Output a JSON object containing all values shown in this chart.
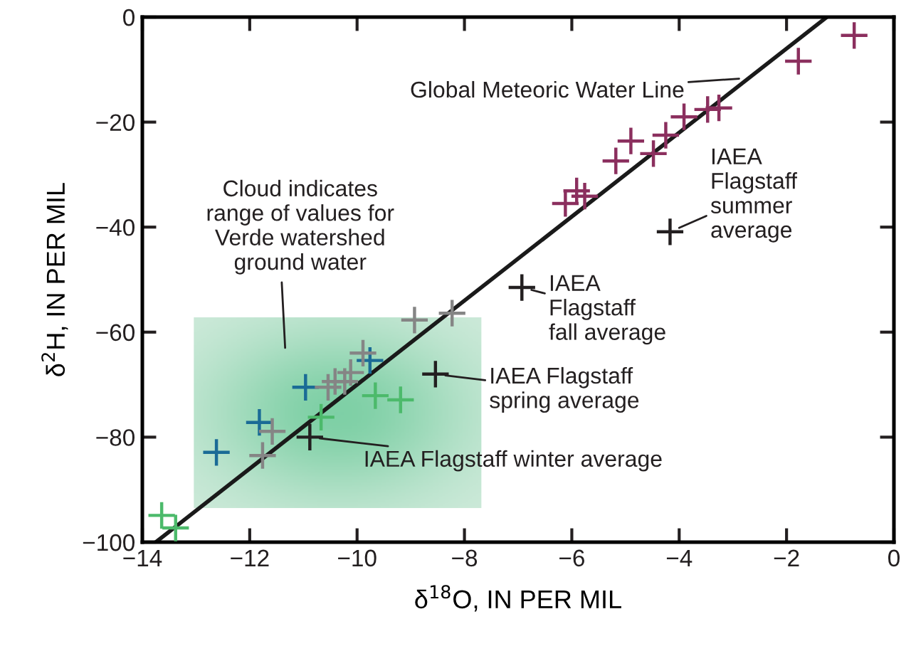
{
  "chart_data": {
    "type": "scatter",
    "xlabel": "δ$^{18}$O, IN PER MIL",
    "ylabel": "δ$^{2}$H, IN PER MIL",
    "xlim": [
      -14,
      0
    ],
    "ylim": [
      -100,
      0
    ],
    "xticks": [
      {
        "value": -14,
        "label": "−14"
      },
      {
        "value": -12,
        "label": "−12"
      },
      {
        "value": -10,
        "label": "−10"
      },
      {
        "value": -8,
        "label": "−8"
      },
      {
        "value": -6,
        "label": "−6"
      },
      {
        "value": -4,
        "label": "−4"
      },
      {
        "value": -2,
        "label": "−2"
      },
      0
    ],
    "yticks": [
      {
        "value": -100,
        "label": "−100"
      },
      {
        "value": -80,
        "label": "−80"
      },
      {
        "value": -60,
        "label": "−60"
      },
      {
        "value": -40,
        "label": "−40"
      },
      {
        "value": -20,
        "label": "−20"
      },
      0
    ],
    "grid": false,
    "legend": false,
    "marker": "cross",
    "series": [
      {
        "type": "line",
        "marker": "none",
        "color": "#1a1a1a",
        "x": [
          -13.75,
          -1.25
        ],
        "values": [
          -100,
          0
        ]
      },
      {
        "color": "#8b2f5e",
        "x": [
          -0.74,
          -1.78,
          -3.26,
          -3.47,
          -3.91,
          -4.25,
          -4.9,
          -4.48,
          -5.18,
          -6.12,
          -5.91,
          -5.76
        ],
        "values": [
          -3.5,
          -8.4,
          -17.3,
          -17.6,
          -19.0,
          -22.5,
          -23.6,
          -26.0,
          -27.4,
          -35.5,
          -33.1,
          -34.1
        ]
      },
      {
        "color": "#1a6b96",
        "x": [
          -12.62,
          -11.82,
          -10.96,
          -9.76
        ],
        "values": [
          -82.9,
          -77.2,
          -70.5,
          -65.4
        ]
      },
      {
        "color": "#858585",
        "x": [
          -11.76,
          -11.58,
          -10.54,
          -10.41,
          -10.23,
          -10.12,
          -9.89,
          -8.93,
          -8.23
        ],
        "values": [
          -83.5,
          -78.9,
          -70.5,
          -69.4,
          -69.4,
          -67.7,
          -64.0,
          -57.7,
          -56.4
        ]
      },
      {
        "color": "#4cba6b",
        "x": [
          -13.64,
          -13.38,
          -10.67,
          -9.66,
          -9.19
        ],
        "values": [
          -94.9,
          -97.3,
          -76.2,
          -72.1,
          -72.9
        ]
      },
      {
        "color": "#231f20",
        "x": [
          -4.17,
          -6.93,
          -8.54,
          -10.88
        ],
        "values": [
          -40.9,
          -51.5,
          -68.0,
          -80.0
        ]
      }
    ],
    "annotations": [
      {
        "text": "Global Meteoric Water Line",
        "x": -2.7,
        "y": -11.6
      },
      {
        "text": "IAEA\nFlagstaff\nsummer\naverage",
        "x": -4.17,
        "y": -40.9
      },
      {
        "text": "IAEA\nFlagstaff\nfall average",
        "x": -6.93,
        "y": -51.5
      },
      {
        "text": "IAEA Flagstaff\nspring average",
        "x": -8.54,
        "y": -68.0
      },
      {
        "text": "IAEA Flagstaff winter average",
        "x": -10.88,
        "y": -80.0
      },
      "Cloud indicates\nrange of values for\nVerde watershed\nground water"
    ]
  }
}
